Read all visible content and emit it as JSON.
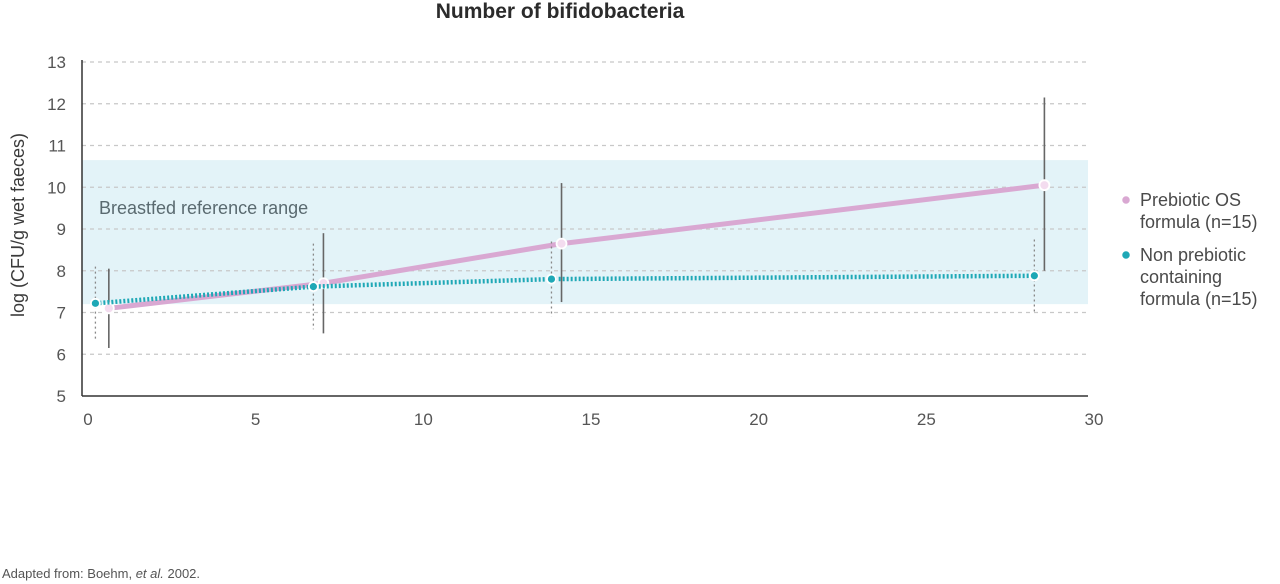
{
  "chart_data": {
    "type": "line",
    "title": "Number of bifidobacteria",
    "xlabel": "",
    "ylabel": "log (CFU/g wet faeces)",
    "xlim": [
      0,
      30
    ],
    "ylim": [
      5,
      13
    ],
    "xticks": [
      0,
      5,
      10,
      15,
      20,
      25,
      30
    ],
    "yticks": [
      5,
      6,
      7,
      8,
      9,
      10,
      11,
      12,
      13
    ],
    "grid": "horizontal dashed",
    "reference_band": {
      "label": "Breastfed reference range",
      "y_range": [
        7.2,
        10.65
      ],
      "color": "#e3f3f8"
    },
    "legend_position": "right",
    "series": [
      {
        "name_lines": [
          "Prebiotic OS",
          "formula (n=15)"
        ],
        "color": "#d9a8d2",
        "style": "solid",
        "points": [
          {
            "x": 0.8,
            "y": 7.1,
            "low": 6.15,
            "high": 8.05
          },
          {
            "x": 7.2,
            "y": 7.7,
            "low": 6.5,
            "high": 8.9
          },
          {
            "x": 14.3,
            "y": 8.65,
            "low": 7.25,
            "high": 10.1
          },
          {
            "x": 28.7,
            "y": 10.05,
            "low": 8.0,
            "high": 12.15
          }
        ]
      },
      {
        "name_lines": [
          "Non prebiotic",
          "containing",
          "formula (n=15)"
        ],
        "color": "#1fa8b6",
        "style": "dotted",
        "points": [
          {
            "x": 0.4,
            "y": 7.22,
            "low": 6.35,
            "high": 8.1
          },
          {
            "x": 6.9,
            "y": 7.62,
            "low": 6.6,
            "high": 8.65
          },
          {
            "x": 14.0,
            "y": 7.8,
            "low": 6.9,
            "high": 8.7
          },
          {
            "x": 28.4,
            "y": 7.88,
            "low": 7.0,
            "high": 8.75
          }
        ]
      }
    ]
  },
  "footnote": {
    "prefix": "Adapted from: Boehm, ",
    "italic": "et al.",
    "suffix": " 2002."
  }
}
